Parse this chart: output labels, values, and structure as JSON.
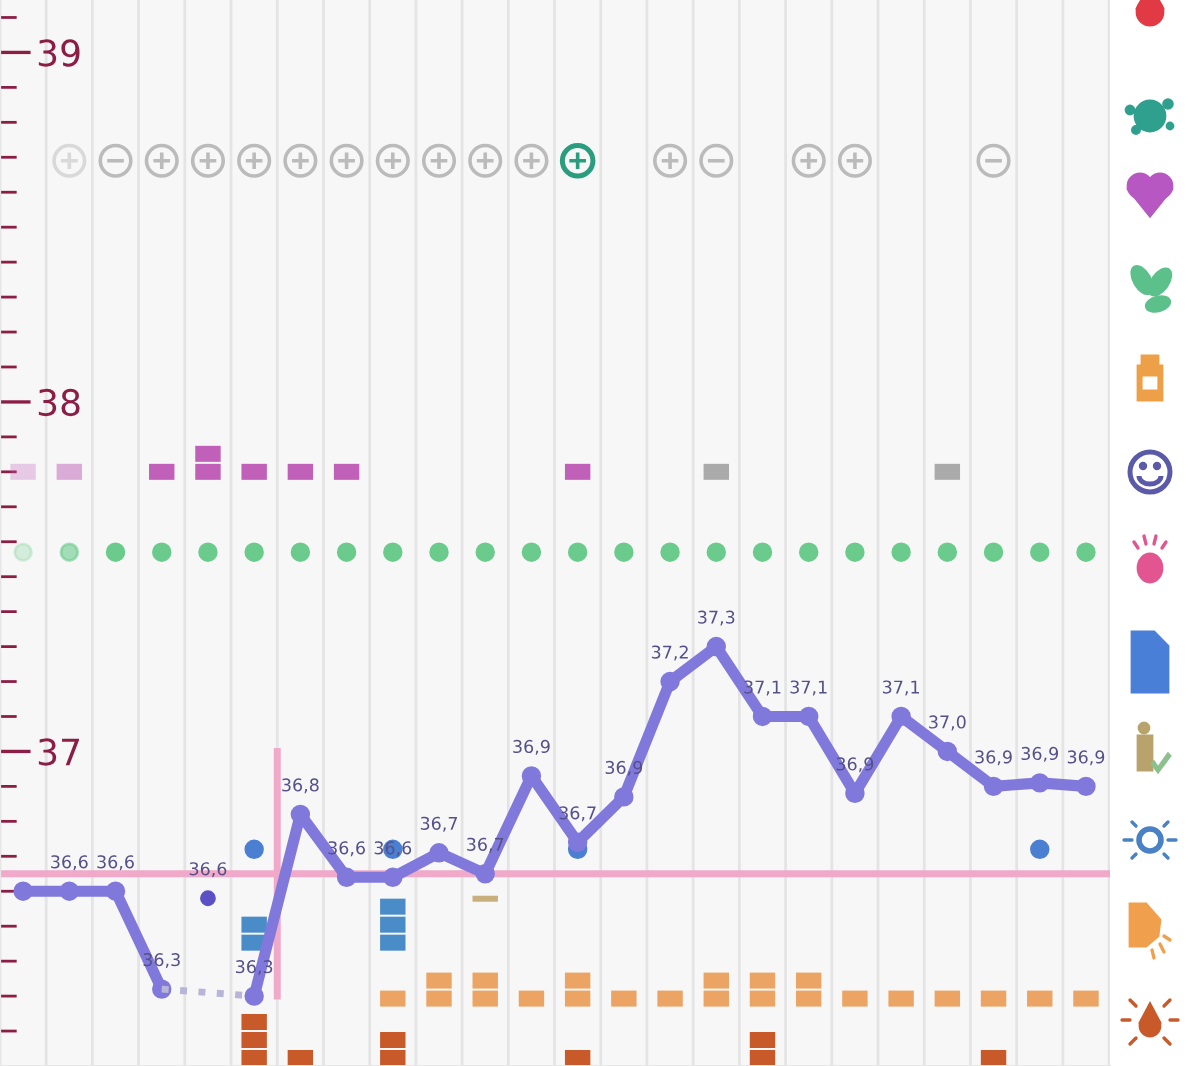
{
  "chart_data": {
    "type": "line",
    "categories": [
      null,
      null,
      null,
      null,
      null,
      null,
      null,
      null,
      null,
      null,
      null,
      null,
      null,
      null,
      null,
      null,
      null,
      null,
      null,
      null,
      null,
      null,
      null,
      null
    ],
    "series": [
      {
        "color": "#8178dc",
        "values": [
          36.6,
          36.6,
          36.6,
          36.32,
          null,
          null,
          null,
          null,
          null,
          null,
          null,
          null,
          null,
          null,
          null,
          null,
          null,
          null,
          null,
          null,
          null,
          null,
          null,
          null
        ],
        "value_labels": [
          null,
          "36,6",
          "36,6",
          "36,3",
          null,
          null,
          null,
          null,
          null,
          null,
          null,
          null,
          null,
          null,
          null,
          null,
          null,
          null,
          null,
          null,
          null,
          null,
          null,
          null
        ]
      },
      {
        "color": "#b9b5d9",
        "line_style": "dotted",
        "marker": "none",
        "values": [
          null,
          null,
          null,
          36.32,
          null,
          36.3,
          null,
          null,
          null,
          null,
          null,
          null,
          null,
          null,
          null,
          null,
          null,
          null,
          null,
          null,
          null,
          null,
          null,
          null
        ]
      },
      {
        "type": "scatter",
        "color": "#5b50c4",
        "values": [
          null,
          null,
          null,
          null,
          36.58,
          null,
          null,
          null,
          null,
          null,
          null,
          null,
          null,
          null,
          null,
          null,
          null,
          null,
          null,
          null,
          null,
          null,
          null,
          null
        ],
        "value_labels": [
          null,
          null,
          null,
          null,
          "36,6",
          null,
          null,
          null,
          null,
          null,
          null,
          null,
          null,
          null,
          null,
          null,
          null,
          null,
          null,
          null,
          null,
          null,
          null,
          null
        ]
      },
      {
        "color": "#8178dc",
        "values": [
          null,
          null,
          null,
          null,
          null,
          36.3,
          36.82,
          36.64,
          36.64,
          36.71,
          36.65,
          36.93,
          36.74,
          36.87,
          37.2,
          37.3,
          37.1,
          37.1,
          36.88,
          37.1,
          37.0,
          36.9,
          36.91,
          36.9
        ],
        "value_labels": [
          null,
          null,
          null,
          null,
          null,
          "36,3",
          "36,8",
          "36,6",
          "36,6",
          "36,7",
          "36,7",
          "36,9",
          "36,7",
          "36,9",
          "37,2",
          "37,3",
          "37,1",
          "37,1",
          "36,9",
          "37,1",
          "37,0",
          "36,9",
          "36,9",
          "36,9"
        ]
      }
    ],
    "ylim": [
      36.1,
      39.15
    ],
    "yticks": [
      {
        "value": 36.2,
        "label": null
      },
      {
        "value": 36.3,
        "label": null
      },
      {
        "value": 36.4,
        "label": null
      },
      {
        "value": 36.5,
        "label": null
      },
      {
        "value": 36.6,
        "label": null
      },
      {
        "value": 36.7,
        "label": null
      },
      {
        "value": 36.8,
        "label": null
      },
      {
        "value": 36.9,
        "label": null
      },
      37,
      {
        "value": 37.1,
        "label": null
      },
      {
        "value": 37.2,
        "label": null
      },
      {
        "value": 37.3,
        "label": null
      },
      {
        "value": 37.4,
        "label": null
      },
      {
        "value": 37.5,
        "label": null
      },
      {
        "value": 37.6,
        "label": null
      },
      {
        "value": 37.7,
        "label": null
      },
      {
        "value": 37.8,
        "label": null
      },
      {
        "value": 37.9,
        "label": null
      },
      38,
      {
        "value": 38.1,
        "label": null
      },
      {
        "value": 38.2,
        "label": null
      },
      {
        "value": 38.3,
        "label": null
      },
      {
        "value": 38.4,
        "label": null
      },
      {
        "value": 38.5,
        "label": null
      },
      {
        "value": 38.6,
        "label": null
      },
      {
        "value": 38.7,
        "label": null
      },
      {
        "value": 38.8,
        "label": null
      },
      {
        "value": 38.9,
        "label": null
      },
      39,
      {
        "value": 39.1,
        "label": null
      }
    ],
    "ref_lines": [
      {
        "axis": "y",
        "value": 36.65,
        "color": "#f0a9c9"
      }
    ],
    "grid": "x",
    "marker": "circle",
    "line_style": "solid",
    "tick_labels": "y"
  }
}
